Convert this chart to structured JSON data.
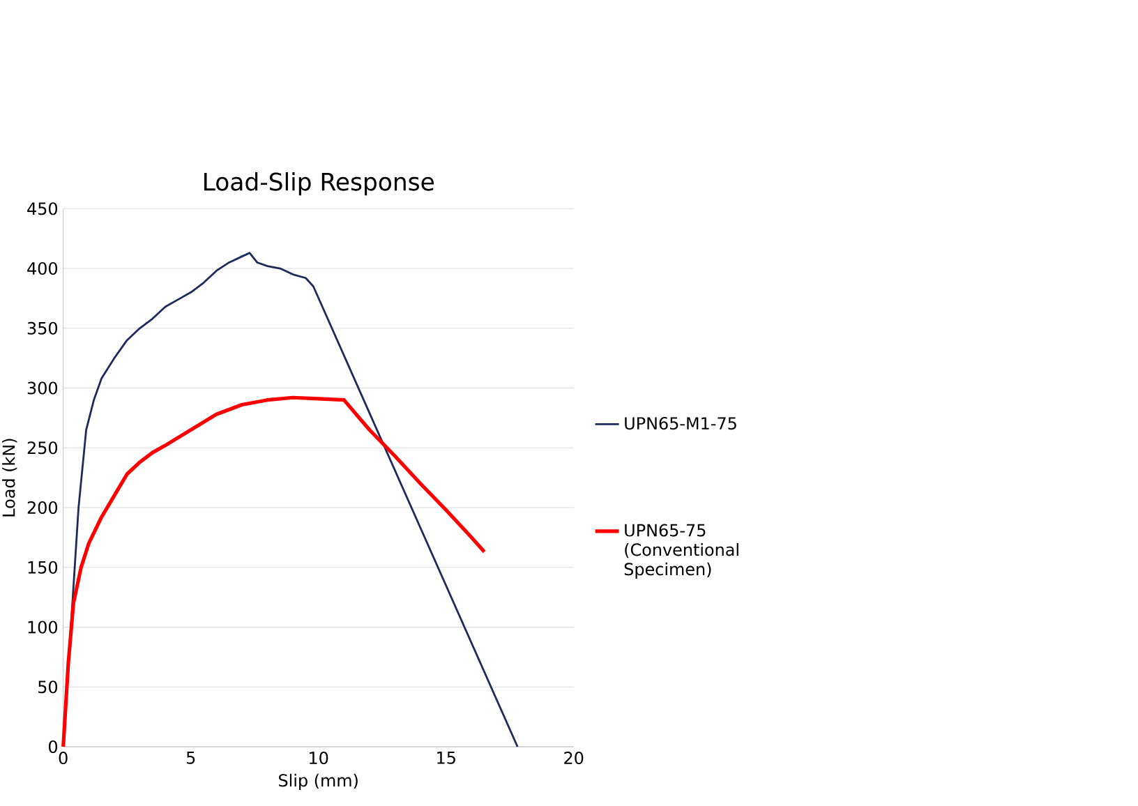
{
  "chart_data": {
    "type": "line",
    "title": "Load-Slip Response",
    "xlabel": "Slip (mm)",
    "ylabel": "Load (kN)",
    "xlim": [
      0,
      20
    ],
    "xticks": [
      0,
      5,
      10,
      15,
      20
    ],
    "ylim": [
      0,
      450
    ],
    "yticks": [
      0,
      50,
      100,
      150,
      200,
      250,
      300,
      350,
      400,
      450
    ],
    "grid": "y",
    "legend": "right",
    "series": [
      {
        "name": "UPN65-M1-75",
        "color": "#1f2a5c",
        "x": [
          0,
          0.3,
          0.6,
          0.9,
          1.2,
          1.5,
          2,
          2.5,
          3,
          3.5,
          4,
          4.5,
          5,
          5.5,
          6,
          6.5,
          7,
          7.3,
          7.6,
          8,
          8.5,
          9,
          9.5,
          9.8,
          17.8
        ],
        "values": [
          0,
          100,
          200,
          265,
          290,
          308,
          325,
          340,
          350,
          358,
          368,
          374,
          380,
          388,
          398,
          405,
          410,
          413,
          405,
          402,
          400,
          395,
          392,
          385,
          0
        ]
      },
      {
        "name": "UPN65-75 (Conventional Specimen)",
        "color": "#ff0000",
        "x": [
          0,
          0.2,
          0.4,
          0.7,
          1,
          1.5,
          2,
          2.5,
          3,
          3.5,
          4,
          5,
          6,
          7,
          8,
          9,
          10,
          11,
          12,
          13,
          14,
          15,
          16,
          16.5
        ],
        "values": [
          0,
          70,
          120,
          150,
          170,
          192,
          210,
          228,
          238,
          246,
          252,
          265,
          278,
          286,
          290,
          292,
          291,
          290,
          265,
          243,
          220,
          198,
          175,
          163
        ]
      }
    ]
  }
}
